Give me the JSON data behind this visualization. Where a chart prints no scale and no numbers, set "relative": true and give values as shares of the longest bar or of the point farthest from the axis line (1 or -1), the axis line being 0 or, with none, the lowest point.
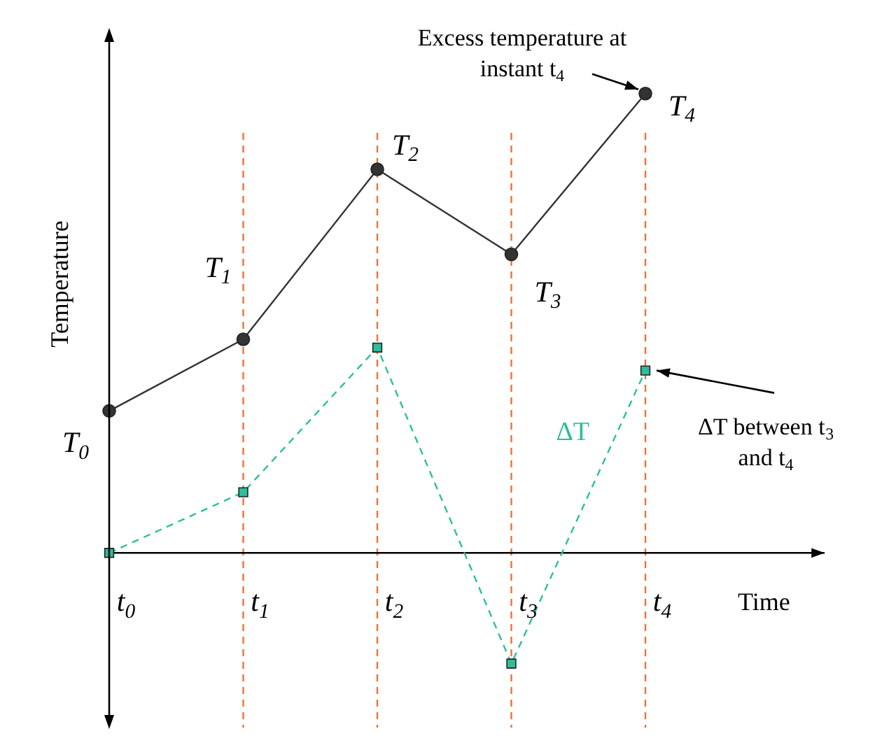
{
  "chart_data": {
    "type": "line",
    "xlabel": "Time",
    "ylabel": "Temperature",
    "relative": true,
    "categories": [
      "t$_{0}$",
      "t$_{1}$",
      "t$_{2}$",
      "t$_{3}$",
      "t$_{4}$"
    ],
    "series": [
      {
        "color": "#333333",
        "marker": "circle",
        "line_style": "solid",
        "values": [
          0.309,
          0.465,
          0.835,
          0.65,
          1.0
        ]
      },
      {
        "name": "ΔT",
        "color": "#2bbf9c",
        "marker": "square",
        "line_style": "dashed",
        "values": [
          0,
          0.132,
          0.447,
          -0.241,
          0.397
        ]
      }
    ],
    "ref_lines": [
      {
        "axis": "x",
        "value": "t$_{1}$",
        "color": "#e8743b",
        "line_style": "dashed"
      },
      {
        "axis": "x",
        "value": "t$_{2}$",
        "color": "#e8743b",
        "line_style": "dashed"
      },
      {
        "axis": "x",
        "value": "t$_{3}$",
        "color": "#e8743b",
        "line_style": "dashed"
      },
      {
        "axis": "x",
        "value": "t$_{4}$",
        "color": "#e8743b",
        "line_style": "dashed"
      }
    ],
    "annotations": [
      "T$_{0}$",
      "T$_{1}$",
      "T$_{2}$",
      "T$_{3}$",
      "T$_{4}$",
      "Excess temperature at instant t$_{4}$",
      "ΔT between t$_{3}$ and t$_{4}$"
    ]
  }
}
